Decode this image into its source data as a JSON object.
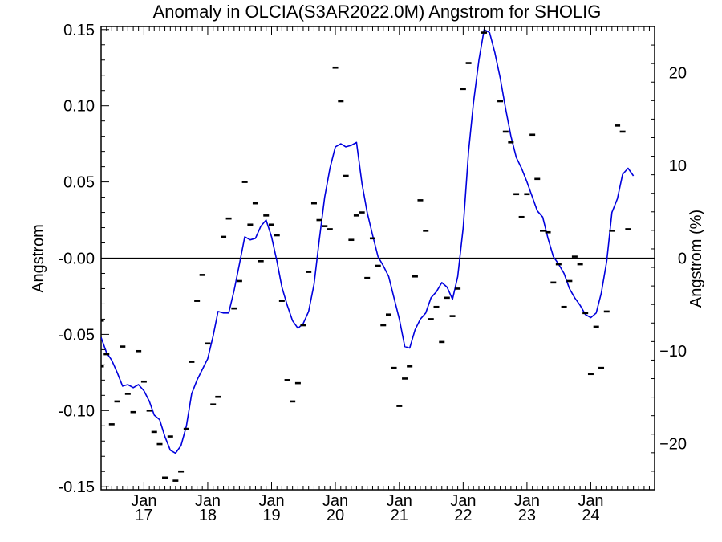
{
  "chart_data": {
    "type": "line",
    "title": "Anomaly in OLCIA(S3AR2022.0M) Angstrom for SHOLIG",
    "ylabel": "Angstrom",
    "y2label": "Angstrom (%)",
    "xlabel": "",
    "ylim": [
      -0.152,
      0.152
    ],
    "y2lim": [
      -25.0,
      25.0
    ],
    "xlim": [
      "2016-05-01",
      "2024-12-31"
    ],
    "grid": false,
    "legend": "none",
    "zero_line": 0,
    "y_ticks": [
      {
        "value": 0.15,
        "label": "0.15"
      },
      {
        "value": 0.1,
        "label": "0.10"
      },
      {
        "value": 0.05,
        "label": "0.05"
      },
      {
        "value": 0.0,
        "label": "-0.00"
      },
      {
        "value": -0.05,
        "label": "-0.05"
      },
      {
        "value": -0.1,
        "label": "-0.10"
      },
      {
        "value": -0.15,
        "label": "-0.15"
      }
    ],
    "y2_ticks": [
      {
        "value": 20,
        "label": "20"
      },
      {
        "value": 10,
        "label": "10"
      },
      {
        "value": 0,
        "label": "0"
      },
      {
        "value": -10,
        "label": "−10"
      },
      {
        "value": -20,
        "label": "−20"
      }
    ],
    "x_ticks": [
      {
        "value": "2017-01-01",
        "label1": "Jan",
        "label2": "17"
      },
      {
        "value": "2018-01-01",
        "label1": "Jan",
        "label2": "18"
      },
      {
        "value": "2019-01-01",
        "label1": "Jan",
        "label2": "19"
      },
      {
        "value": "2020-01-01",
        "label1": "Jan",
        "label2": "20"
      },
      {
        "value": "2021-01-01",
        "label1": "Jan",
        "label2": "21"
      },
      {
        "value": "2022-01-01",
        "label1": "Jan",
        "label2": "22"
      },
      {
        "value": "2023-01-01",
        "label1": "Jan",
        "label2": "23"
      },
      {
        "value": "2024-01-01",
        "label1": "Jan",
        "label2": "24"
      }
    ],
    "series": [
      {
        "kind": "markers",
        "color": "#000000",
        "points": [
          {
            "x": "2016-05-01",
            "y": -0.041
          },
          {
            "x": "2016-05-01",
            "y": -0.071
          },
          {
            "x": "2016-06-01",
            "y": -0.063
          },
          {
            "x": "2016-07-01",
            "y": -0.109
          },
          {
            "x": "2016-08-01",
            "y": -0.094
          },
          {
            "x": "2016-09-01",
            "y": -0.058
          },
          {
            "x": "2016-10-01",
            "y": -0.089
          },
          {
            "x": "2016-11-01",
            "y": -0.101
          },
          {
            "x": "2016-12-01",
            "y": -0.061
          },
          {
            "x": "2017-01-01",
            "y": -0.081
          },
          {
            "x": "2017-02-01",
            "y": -0.1
          },
          {
            "x": "2017-03-01",
            "y": -0.114
          },
          {
            "x": "2017-04-01",
            "y": -0.122
          },
          {
            "x": "2017-05-01",
            "y": -0.144
          },
          {
            "x": "2017-06-01",
            "y": -0.117
          },
          {
            "x": "2017-07-01",
            "y": -0.146
          },
          {
            "x": "2017-08-01",
            "y": -0.14
          },
          {
            "x": "2017-09-01",
            "y": -0.112
          },
          {
            "x": "2017-10-01",
            "y": -0.068
          },
          {
            "x": "2017-11-01",
            "y": -0.028
          },
          {
            "x": "2017-12-01",
            "y": -0.011
          },
          {
            "x": "2018-01-01",
            "y": -0.056
          },
          {
            "x": "2018-02-01",
            "y": -0.096
          },
          {
            "x": "2018-03-01",
            "y": -0.091
          },
          {
            "x": "2018-04-01",
            "y": 0.014
          },
          {
            "x": "2018-05-01",
            "y": 0.026
          },
          {
            "x": "2018-06-01",
            "y": -0.033
          },
          {
            "x": "2018-07-01",
            "y": -0.015
          },
          {
            "x": "2018-08-01",
            "y": 0.05
          },
          {
            "x": "2018-09-01",
            "y": 0.022
          },
          {
            "x": "2018-10-01",
            "y": 0.036
          },
          {
            "x": "2018-11-01",
            "y": -0.002
          },
          {
            "x": "2018-12-01",
            "y": 0.028
          },
          {
            "x": "2019-01-01",
            "y": 0.022
          },
          {
            "x": "2019-02-01",
            "y": 0.015
          },
          {
            "x": "2019-03-01",
            "y": -0.028
          },
          {
            "x": "2019-04-01",
            "y": -0.08
          },
          {
            "x": "2019-05-01",
            "y": -0.094
          },
          {
            "x": "2019-06-01",
            "y": -0.082
          },
          {
            "x": "2019-07-01",
            "y": -0.044
          },
          {
            "x": "2019-08-01",
            "y": -0.009
          },
          {
            "x": "2019-09-01",
            "y": 0.036
          },
          {
            "x": "2019-10-01",
            "y": 0.025
          },
          {
            "x": "2019-11-01",
            "y": 0.021
          },
          {
            "x": "2019-12-01",
            "y": 0.019
          },
          {
            "x": "2020-01-01",
            "y": 0.125
          },
          {
            "x": "2020-02-01",
            "y": 0.103
          },
          {
            "x": "2020-03-01",
            "y": 0.054
          },
          {
            "x": "2020-04-01",
            "y": 0.012
          },
          {
            "x": "2020-05-01",
            "y": 0.028
          },
          {
            "x": "2020-06-01",
            "y": 0.03
          },
          {
            "x": "2020-07-01",
            "y": -0.013
          },
          {
            "x": "2020-08-01",
            "y": 0.013
          },
          {
            "x": "2020-09-01",
            "y": -0.005
          },
          {
            "x": "2020-10-01",
            "y": -0.044
          },
          {
            "x": "2020-11-01",
            "y": -0.037
          },
          {
            "x": "2020-12-01",
            "y": -0.072
          },
          {
            "x": "2021-01-01",
            "y": -0.097
          },
          {
            "x": "2021-02-01",
            "y": -0.079
          },
          {
            "x": "2021-03-01",
            "y": -0.071
          },
          {
            "x": "2021-04-01",
            "y": -0.012
          },
          {
            "x": "2021-05-01",
            "y": 0.038
          },
          {
            "x": "2021-06-01",
            "y": 0.018
          },
          {
            "x": "2021-07-01",
            "y": -0.04
          },
          {
            "x": "2021-08-01",
            "y": -0.032
          },
          {
            "x": "2021-09-01",
            "y": -0.055
          },
          {
            "x": "2021-10-01",
            "y": -0.026
          },
          {
            "x": "2021-11-01",
            "y": -0.038
          },
          {
            "x": "2021-12-01",
            "y": -0.02
          },
          {
            "x": "2022-01-01",
            "y": 0.111
          },
          {
            "x": "2022-02-01",
            "y": 0.128
          },
          {
            "x": "2022-05-01",
            "y": 0.148
          },
          {
            "x": "2022-08-01",
            "y": 0.103
          },
          {
            "x": "2022-09-01",
            "y": 0.083
          },
          {
            "x": "2022-10-01",
            "y": 0.076
          },
          {
            "x": "2022-11-01",
            "y": 0.042
          },
          {
            "x": "2022-12-01",
            "y": 0.027
          },
          {
            "x": "2023-01-01",
            "y": 0.042
          },
          {
            "x": "2023-02-01",
            "y": 0.081
          },
          {
            "x": "2023-03-01",
            "y": 0.052
          },
          {
            "x": "2023-04-01",
            "y": 0.018
          },
          {
            "x": "2023-05-01",
            "y": 0.017
          },
          {
            "x": "2023-06-01",
            "y": -0.016
          },
          {
            "x": "2023-07-01",
            "y": -0.004
          },
          {
            "x": "2023-08-01",
            "y": -0.032
          },
          {
            "x": "2023-09-01",
            "y": -0.015
          },
          {
            "x": "2023-10-01",
            "y": 0.001
          },
          {
            "x": "2023-11-01",
            "y": -0.004
          },
          {
            "x": "2023-12-01",
            "y": -0.036
          },
          {
            "x": "2024-01-01",
            "y": -0.076
          },
          {
            "x": "2024-02-01",
            "y": -0.045
          },
          {
            "x": "2024-03-01",
            "y": -0.072
          },
          {
            "x": "2024-04-01",
            "y": -0.035
          },
          {
            "x": "2024-05-01",
            "y": 0.018
          },
          {
            "x": "2024-06-01",
            "y": 0.087
          },
          {
            "x": "2024-07-01",
            "y": 0.083
          },
          {
            "x": "2024-08-01",
            "y": 0.019
          }
        ]
      },
      {
        "kind": "line",
        "color": "#0000dd",
        "points": [
          {
            "x": "2016-05-01",
            "y": -0.052
          },
          {
            "x": "2016-06-01",
            "y": -0.062
          },
          {
            "x": "2016-07-01",
            "y": -0.067
          },
          {
            "x": "2016-08-01",
            "y": -0.075
          },
          {
            "x": "2016-09-01",
            "y": -0.084
          },
          {
            "x": "2016-10-01",
            "y": -0.083
          },
          {
            "x": "2016-11-01",
            "y": -0.085
          },
          {
            "x": "2016-12-01",
            "y": -0.083
          },
          {
            "x": "2017-01-01",
            "y": -0.087
          },
          {
            "x": "2017-02-01",
            "y": -0.094
          },
          {
            "x": "2017-03-01",
            "y": -0.103
          },
          {
            "x": "2017-04-01",
            "y": -0.106
          },
          {
            "x": "2017-05-01",
            "y": -0.117
          },
          {
            "x": "2017-06-01",
            "y": -0.126
          },
          {
            "x": "2017-07-01",
            "y": -0.128
          },
          {
            "x": "2017-08-01",
            "y": -0.123
          },
          {
            "x": "2017-09-01",
            "y": -0.11
          },
          {
            "x": "2017-10-01",
            "y": -0.089
          },
          {
            "x": "2017-11-01",
            "y": -0.08
          },
          {
            "x": "2017-12-01",
            "y": -0.073
          },
          {
            "x": "2018-01-01",
            "y": -0.066
          },
          {
            "x": "2018-02-01",
            "y": -0.051
          },
          {
            "x": "2018-03-01",
            "y": -0.035
          },
          {
            "x": "2018-04-01",
            "y": -0.036
          },
          {
            "x": "2018-05-01",
            "y": -0.036
          },
          {
            "x": "2018-06-01",
            "y": -0.021
          },
          {
            "x": "2018-07-01",
            "y": -0.004
          },
          {
            "x": "2018-08-01",
            "y": 0.014
          },
          {
            "x": "2018-09-01",
            "y": 0.012
          },
          {
            "x": "2018-10-01",
            "y": 0.013
          },
          {
            "x": "2018-11-01",
            "y": 0.021
          },
          {
            "x": "2018-12-01",
            "y": 0.025
          },
          {
            "x": "2019-01-01",
            "y": 0.014
          },
          {
            "x": "2019-02-01",
            "y": -0.002
          },
          {
            "x": "2019-03-01",
            "y": -0.019
          },
          {
            "x": "2019-04-01",
            "y": -0.031
          },
          {
            "x": "2019-05-01",
            "y": -0.041
          },
          {
            "x": "2019-06-01",
            "y": -0.046
          },
          {
            "x": "2019-07-01",
            "y": -0.043
          },
          {
            "x": "2019-08-01",
            "y": -0.035
          },
          {
            "x": "2019-09-01",
            "y": -0.017
          },
          {
            "x": "2019-10-01",
            "y": 0.012
          },
          {
            "x": "2019-11-01",
            "y": 0.04
          },
          {
            "x": "2019-12-01",
            "y": 0.059
          },
          {
            "x": "2020-01-01",
            "y": 0.073
          },
          {
            "x": "2020-02-01",
            "y": 0.075
          },
          {
            "x": "2020-03-01",
            "y": 0.073
          },
          {
            "x": "2020-04-01",
            "y": 0.074
          },
          {
            "x": "2020-05-01",
            "y": 0.076
          },
          {
            "x": "2020-06-01",
            "y": 0.049
          },
          {
            "x": "2020-07-01",
            "y": 0.03
          },
          {
            "x": "2020-08-01",
            "y": 0.015
          },
          {
            "x": "2020-09-01",
            "y": 0.001
          },
          {
            "x": "2020-10-01",
            "y": -0.005
          },
          {
            "x": "2020-11-01",
            "y": -0.012
          },
          {
            "x": "2020-12-01",
            "y": -0.026
          },
          {
            "x": "2021-01-01",
            "y": -0.04
          },
          {
            "x": "2021-02-01",
            "y": -0.058
          },
          {
            "x": "2021-03-01",
            "y": -0.059
          },
          {
            "x": "2021-04-01",
            "y": -0.047
          },
          {
            "x": "2021-05-01",
            "y": -0.04
          },
          {
            "x": "2021-06-01",
            "y": -0.036
          },
          {
            "x": "2021-07-01",
            "y": -0.026
          },
          {
            "x": "2021-08-01",
            "y": -0.022
          },
          {
            "x": "2021-09-01",
            "y": -0.016
          },
          {
            "x": "2021-10-01",
            "y": -0.019
          },
          {
            "x": "2021-11-01",
            "y": -0.027
          },
          {
            "x": "2021-12-01",
            "y": -0.012
          },
          {
            "x": "2022-01-01",
            "y": 0.02
          },
          {
            "x": "2022-02-01",
            "y": 0.07
          },
          {
            "x": "2022-03-01",
            "y": 0.102
          },
          {
            "x": "2022-04-01",
            "y": 0.13
          },
          {
            "x": "2022-05-01",
            "y": 0.15
          },
          {
            "x": "2022-06-01",
            "y": 0.148
          },
          {
            "x": "2022-07-01",
            "y": 0.135
          },
          {
            "x": "2022-08-01",
            "y": 0.118
          },
          {
            "x": "2022-09-01",
            "y": 0.098
          },
          {
            "x": "2022-10-01",
            "y": 0.08
          },
          {
            "x": "2022-11-01",
            "y": 0.066
          },
          {
            "x": "2022-12-01",
            "y": 0.059
          },
          {
            "x": "2023-01-01",
            "y": 0.05
          },
          {
            "x": "2023-02-01",
            "y": 0.04
          },
          {
            "x": "2023-03-01",
            "y": 0.031
          },
          {
            "x": "2023-04-01",
            "y": 0.027
          },
          {
            "x": "2023-05-01",
            "y": 0.013
          },
          {
            "x": "2023-06-01",
            "y": 0.001
          },
          {
            "x": "2023-07-01",
            "y": -0.004
          },
          {
            "x": "2023-08-01",
            "y": -0.01
          },
          {
            "x": "2023-09-01",
            "y": -0.02
          },
          {
            "x": "2023-10-01",
            "y": -0.026
          },
          {
            "x": "2023-11-01",
            "y": -0.031
          },
          {
            "x": "2023-12-01",
            "y": -0.037
          },
          {
            "x": "2024-01-01",
            "y": -0.039
          },
          {
            "x": "2024-02-01",
            "y": -0.036
          },
          {
            "x": "2024-03-01",
            "y": -0.023
          },
          {
            "x": "2024-04-01",
            "y": -0.002
          },
          {
            "x": "2024-05-01",
            "y": 0.03
          },
          {
            "x": "2024-06-01",
            "y": 0.039
          },
          {
            "x": "2024-07-01",
            "y": 0.055
          },
          {
            "x": "2024-08-01",
            "y": 0.059
          },
          {
            "x": "2024-09-01",
            "y": 0.054
          }
        ]
      }
    ]
  }
}
